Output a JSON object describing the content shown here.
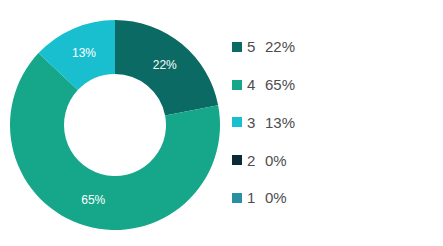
{
  "chart_data": {
    "type": "pie",
    "categories": [
      "5",
      "4",
      "3",
      "2",
      "1"
    ],
    "values": [
      22,
      65,
      13,
      0,
      0
    ],
    "value_labels": [
      "22%",
      "65%",
      "13%",
      "0%",
      "0%"
    ],
    "colors": [
      "#0b6a64",
      "#16a78b",
      "#19bfcf",
      "#0a2a3a",
      "#2b8fa3"
    ],
    "data_labels": true,
    "legend": "right"
  }
}
